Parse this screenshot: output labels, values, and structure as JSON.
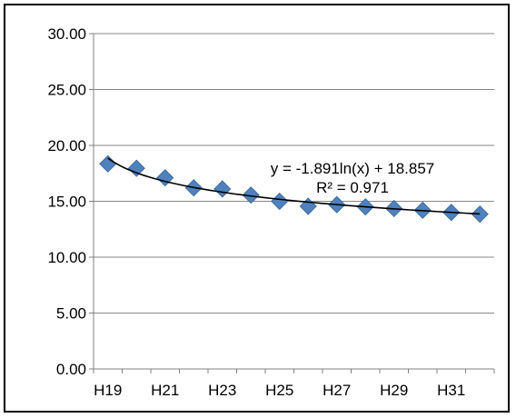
{
  "chart_data": {
    "type": "scatter",
    "categories": [
      "H19",
      "H20",
      "H21",
      "H22",
      "H23",
      "H24",
      "H25",
      "H26",
      "H27",
      "H28",
      "H29",
      "H30",
      "H31",
      "H32"
    ],
    "x_tick_labels": [
      "H19",
      "H21",
      "H23",
      "H25",
      "H27",
      "H29",
      "H31"
    ],
    "series": [
      {
        "values": [
          18.35,
          17.95,
          17.1,
          16.2,
          16.1,
          15.55,
          15.0,
          14.55,
          14.7,
          14.5,
          14.35,
          14.2,
          14.0,
          13.85
        ],
        "color": "#4f81bd",
        "marker": "diamond"
      }
    ],
    "trendline": {
      "kind": "logarithmic",
      "a": -1.891,
      "b": 18.857,
      "equation": "y = -1.891ln(x) + 18.857",
      "r_squared": "R² = 0.971",
      "color": "#000000"
    },
    "y_ticks": [
      "0.00",
      "5.00",
      "10.00",
      "15.00",
      "20.00",
      "25.00",
      "30.00"
    ],
    "ylim": [
      0,
      30
    ],
    "grid": "horizontal",
    "title": "",
    "xlabel": "",
    "ylabel": ""
  }
}
